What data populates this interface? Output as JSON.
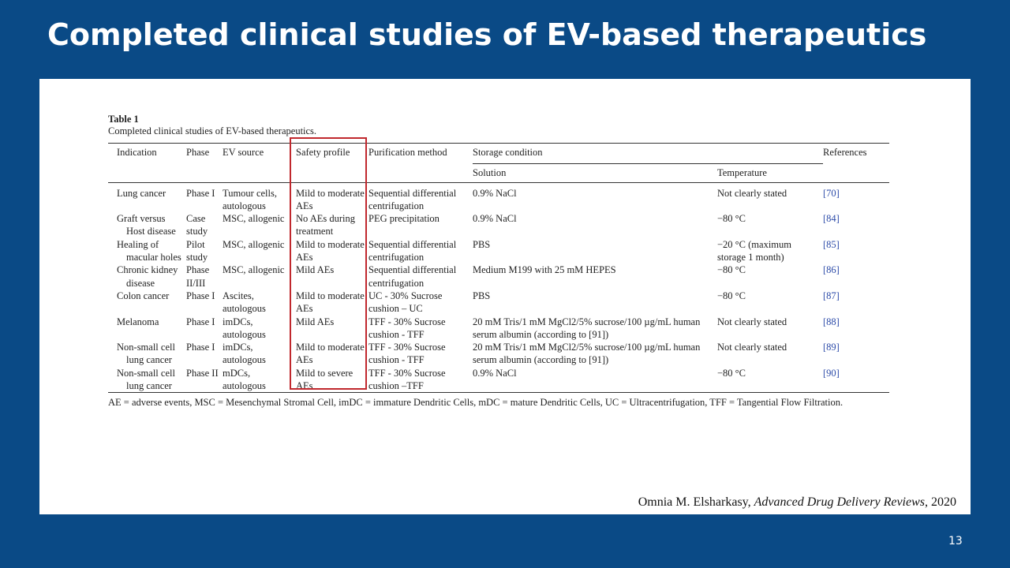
{
  "slide": {
    "title": "Completed clinical studies of EV-based therapeutics",
    "page_number": "13"
  },
  "table": {
    "label": "Table 1",
    "caption": "Completed clinical studies of EV-based therapeutics.",
    "headers": {
      "indication": "Indication",
      "phase": "Phase",
      "ev_source": "EV source",
      "safety_profile": "Safety profile",
      "purification": "Purification method",
      "storage": "Storage condition",
      "solution": "Solution",
      "temperature": "Temperature",
      "references": "References"
    },
    "rows": [
      {
        "indication": "Lung cancer",
        "phase": "Phase I",
        "ev_source": "Tumour cells, autologous",
        "safety": "Mild to moderate AEs",
        "purification": "Sequential differential centrifugation",
        "solution": "0.9% NaCl",
        "temperature": "Not clearly stated",
        "ref": "[70]"
      },
      {
        "indication": "Graft versus Host disease",
        "phase": "Case study",
        "ev_source": "MSC, allogenic",
        "safety": "No AEs during treatment",
        "purification": "PEG precipitation",
        "solution": "0.9% NaCl",
        "temperature": "−80 °C",
        "ref": "[84]"
      },
      {
        "indication": "Healing of macular holes",
        "phase": "Pilot study",
        "ev_source": "MSC, allogenic",
        "safety": "Mild to moderate AEs",
        "purification": "Sequential differential centrifugation",
        "solution": "PBS",
        "temperature": "−20 °C (maximum storage 1 month)",
        "ref": "[85]"
      },
      {
        "indication": "Chronic kidney disease",
        "phase": "Phase II/III",
        "ev_source": "MSC, allogenic",
        "safety": "Mild AEs",
        "purification": "Sequential differential centrifugation",
        "solution": "Medium M199 with 25 mM HEPES",
        "temperature": "−80 °C",
        "ref": "[86]"
      },
      {
        "indication": "Colon cancer",
        "phase": "Phase I",
        "ev_source": "Ascites, autologous",
        "safety": "Mild to moderate AEs",
        "purification": "UC - 30% Sucrose cushion – UC",
        "solution": "PBS",
        "temperature": "−80 °C",
        "ref": "[87]"
      },
      {
        "indication": "Melanoma",
        "phase": "Phase I",
        "ev_source": "imDCs, autologous",
        "safety": "Mild AEs",
        "purification": "TFF - 30% Sucrose cushion - TFF",
        "solution": "20 mM Tris/1 mM MgCl2/5% sucrose/100 µg/mL human serum albumin (according to [91])",
        "temperature": "Not clearly stated",
        "ref": "[88]"
      },
      {
        "indication": "Non-small cell lung cancer",
        "phase": "Phase I",
        "ev_source": "imDCs, autologous",
        "safety": "Mild to moderate AEs",
        "purification": "TFF - 30% Sucrose cushion - TFF",
        "solution": "20 mM Tris/1 mM MgCl2/5% sucrose/100 µg/mL human serum albumin (according to [91])",
        "temperature": "Not clearly stated",
        "ref": "[89]"
      },
      {
        "indication": "Non-small cell lung cancer",
        "phase": "Phase II",
        "ev_source": "mDCs, autologous",
        "safety": "Mild to severe AEs",
        "purification": "TFF - 30% Sucrose cushion –TFF",
        "solution": "0.9% NaCl",
        "temperature": "−80 °C",
        "ref": "[90]"
      }
    ],
    "footnote": "AE = adverse events, MSC = Mesenchymal Stromal Cell, imDC = immature Dendritic Cells, mDC = mature Dendritic Cells, UC = Ultracentrifugation, TFF = Tangential Flow Filtration."
  },
  "citation": {
    "author": "Omnia M. Elsharkasy, ",
    "journal": "Advanced Drug Delivery Reviews",
    "year": ", 2020"
  },
  "colors": {
    "background": "#0a4a86",
    "highlight": "#c0282d",
    "reference_link": "#2b4aa8"
  }
}
